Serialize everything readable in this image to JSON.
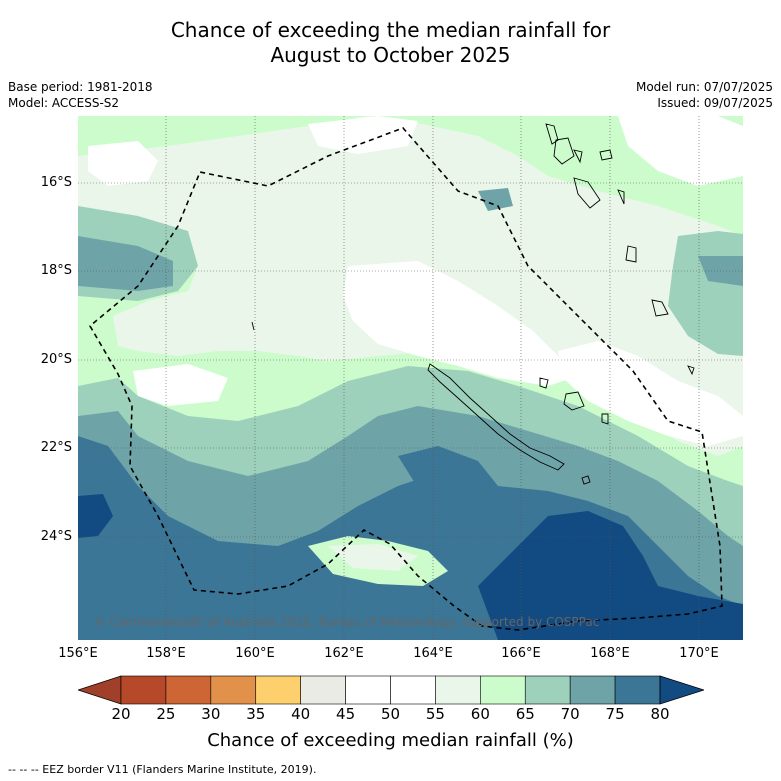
{
  "title_line1": "Chance of exceeding the median rainfall for",
  "title_line2": "August to October 2025",
  "base_period": "Base period: 1981-2018",
  "model": "Model: ACCESS-S2",
  "model_run": "Model run: 07/07/2025",
  "issued": "Issued: 09/07/2025",
  "copyright": "© Commonwealth of Australia 2025, Bureau of Meteorology, supported by COSPPac",
  "lat_labels": [
    "16°S",
    "18°S",
    "20°S",
    "22°S",
    "24°S"
  ],
  "lon_labels": [
    "156°E",
    "158°E",
    "160°E",
    "162°E",
    "164°E",
    "166°E",
    "168°E",
    "170°E"
  ],
  "colorbar": {
    "ticks": [
      "20",
      "25",
      "30",
      "35",
      "40",
      "45",
      "50",
      "55",
      "60",
      "65",
      "70",
      "75",
      "80"
    ],
    "colors": [
      "#a0402a",
      "#b5492a",
      "#ce6535",
      "#e2914a",
      "#fdd06d",
      "#ebebe6",
      "#ffffff",
      "#ffffff",
      "#eaf6ea",
      "#ccfccc",
      "#9ed1bc",
      "#6ea4a8",
      "#3c7697",
      "#124a82"
    ],
    "title": "Chance of exceeding median rainfall (%)"
  },
  "footnote": "--  --  -- EEZ border V11 (Flanders Marine Institute, 2019)."
}
